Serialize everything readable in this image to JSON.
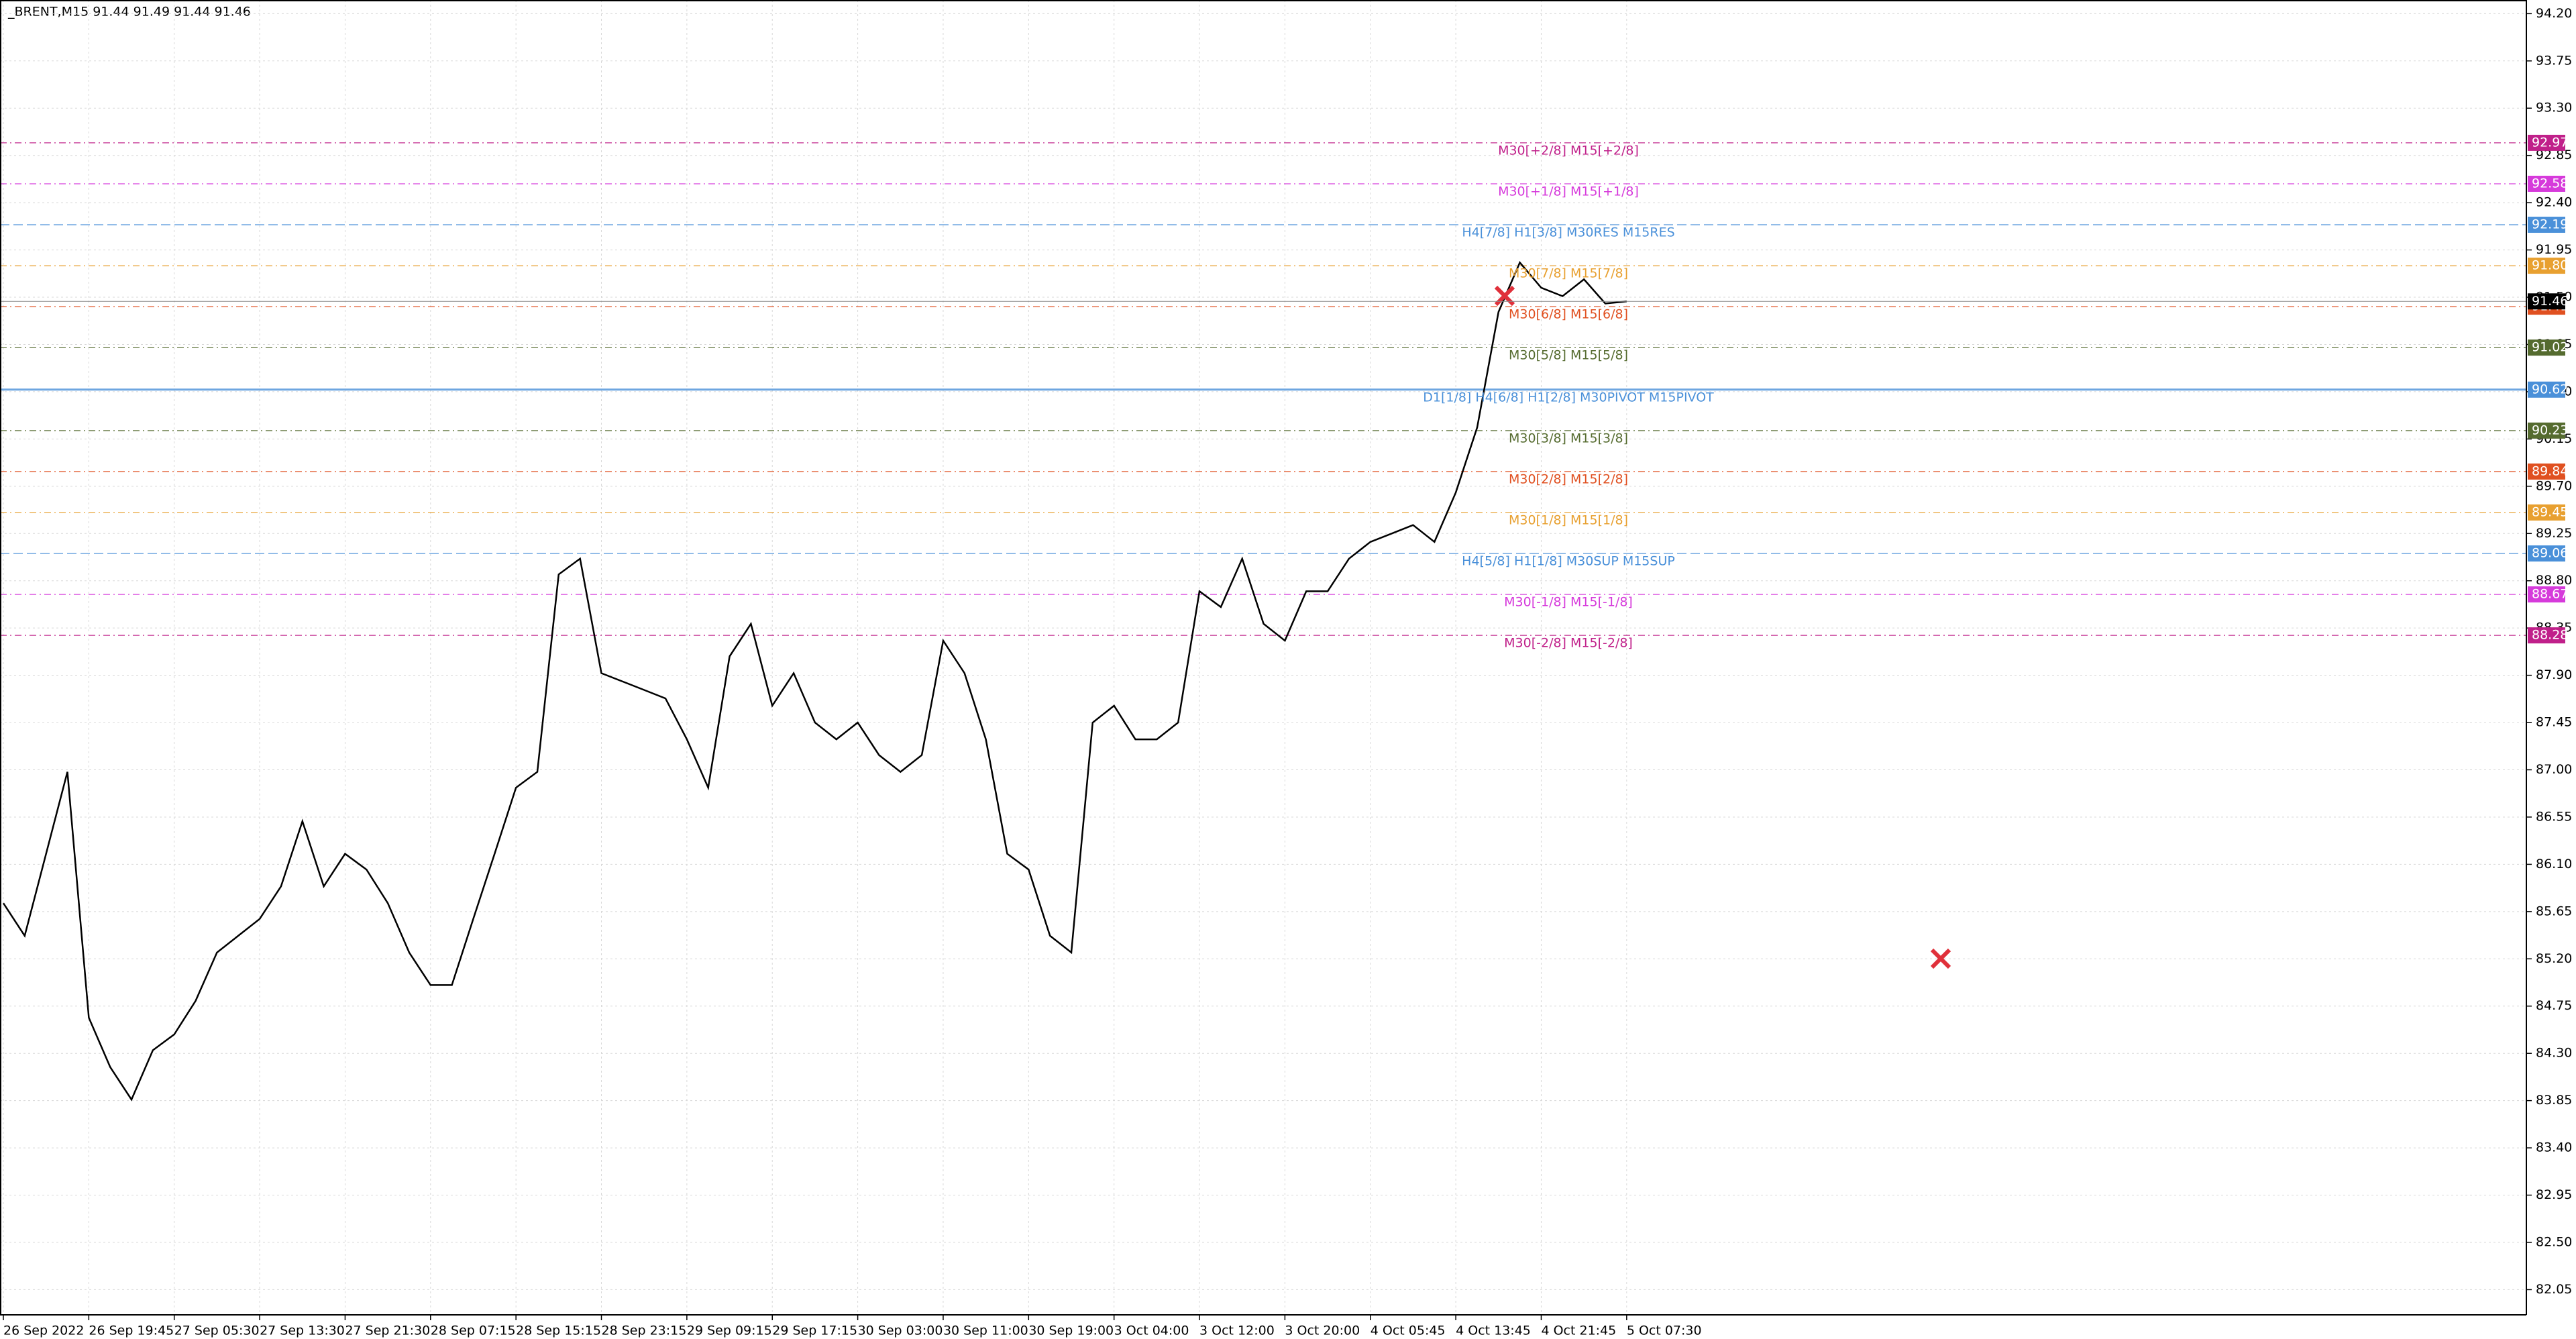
{
  "chart_data": {
    "type": "line",
    "title": "_BRENT,M15  91.44 91.49 91.44 91.46",
    "categories": [
      "26 Sep 2022",
      null,
      null,
      null,
      "26 Sep 19:45",
      null,
      null,
      null,
      "27 Sep 05:30",
      null,
      null,
      null,
      "27 Sep 13:30",
      null,
      null,
      null,
      "27 Sep 21:30",
      null,
      null,
      null,
      "28 Sep 07:15",
      null,
      null,
      null,
      "28 Sep 15:15",
      null,
      null,
      null,
      "28 Sep 23:15",
      null,
      null,
      null,
      "29 Sep 09:15",
      null,
      null,
      null,
      "29 Sep 17:15",
      null,
      null,
      null,
      "30 Sep 03:00",
      null,
      null,
      null,
      "30 Sep 11:00",
      null,
      null,
      null,
      "30 Sep 19:00",
      null,
      null,
      null,
      "3 Oct 04:00",
      null,
      null,
      null,
      "3 Oct 12:00",
      null,
      null,
      null,
      "3 Oct 20:00",
      null,
      null,
      null,
      "4 Oct 05:45",
      null,
      null,
      null,
      "4 Oct 13:45",
      null,
      null,
      null,
      "4 Oct 21:45",
      null,
      null,
      null,
      "5 Oct 07:30"
    ],
    "series": [
      {
        "name": "_BRENT,M15",
        "color": "#000000",
        "values": [
          85.73,
          85.42,
          86.2,
          86.98,
          84.64,
          84.17,
          83.86,
          84.33,
          84.48,
          84.8,
          85.26,
          85.42,
          85.58,
          85.89,
          86.51,
          85.89,
          86.2,
          86.05,
          85.73,
          85.26,
          84.95,
          84.95,
          85.58,
          86.2,
          86.83,
          86.98,
          88.86,
          89.01,
          87.92,
          87.84,
          87.76,
          87.68,
          87.29,
          86.83,
          88.08,
          88.39,
          87.61,
          87.92,
          87.45,
          87.29,
          87.45,
          87.14,
          86.98,
          87.14,
          88.23,
          87.92,
          87.29,
          86.2,
          86.05,
          85.42,
          85.26,
          87.45,
          87.61,
          87.29,
          87.29,
          87.45,
          88.7,
          88.55,
          89.01,
          88.39,
          88.23,
          88.7,
          88.7,
          89.01,
          89.17,
          89.25,
          89.33,
          89.17,
          89.64,
          90.26,
          91.36,
          91.83,
          91.59,
          91.51,
          91.67,
          91.44,
          91.46
        ]
      }
    ],
    "ylim": [
      81.81,
      94.33
    ],
    "yticks": [
      {
        "value": 94.2,
        "label": "94.20"
      },
      {
        "value": 93.75,
        "label": "93.75"
      },
      {
        "value": 93.3,
        "label": "93.30"
      },
      {
        "value": 92.85,
        "label": "92.85"
      },
      {
        "value": 92.4,
        "label": "92.40"
      },
      {
        "value": 91.95,
        "label": "91.95"
      },
      {
        "value": 91.5,
        "label": "91.50"
      },
      {
        "value": 91.05,
        "label": "91.05"
      },
      {
        "value": 90.6,
        "label": "90.60"
      },
      {
        "value": 90.15,
        "label": "90.15"
      },
      {
        "value": 89.7,
        "label": "89.70"
      },
      {
        "value": 89.25,
        "label": "89.25"
      },
      {
        "value": 88.8,
        "label": "88.80"
      },
      {
        "value": 88.35,
        "label": "88.35"
      },
      {
        "value": 87.9,
        "label": "87.90"
      },
      {
        "value": 87.45,
        "label": "87.45"
      },
      {
        "value": 87.0,
        "label": "87.00"
      },
      {
        "value": 86.55,
        "label": "86.55"
      },
      {
        "value": 86.1,
        "label": "86.10"
      },
      {
        "value": 85.65,
        "label": "85.65"
      },
      {
        "value": 85.2,
        "label": "85.20"
      },
      {
        "value": 84.75,
        "label": "84.75"
      },
      {
        "value": 84.3,
        "label": "84.30"
      },
      {
        "value": 83.85,
        "label": "83.85"
      },
      {
        "value": 83.4,
        "label": "83.40"
      },
      {
        "value": 82.95,
        "label": "82.95"
      },
      {
        "value": 82.5,
        "label": "82.50"
      },
      {
        "value": 82.05,
        "label": "82.05"
      }
    ],
    "grid": true,
    "last_price": 91.46,
    "levels": [
      {
        "name": "M30[+2/8] M15[+2/8]",
        "value": 92.97,
        "color": "#c0208a"
      },
      {
        "name": "M30[+1/8] M15[+1/8]",
        "value": 92.58,
        "color": "#d63adb"
      },
      {
        "name": "H4[7/8] H1[3/8] M30RES M15RES",
        "value": 92.19,
        "color": "#4a90d9"
      },
      {
        "name": "M30[7/8] M15[7/8]",
        "value": {
          "value": 91.8,
          "label": "91.80"
        },
        "color": "#e8a030"
      },
      {
        "name": "M30[6/8] M15[6/8]",
        "value": 91.41,
        "color": "#e05020"
      },
      {
        "name": "M30[5/8] M15[5/8]",
        "value": 91.02,
        "color": "#556b2f"
      },
      {
        "name": "D1[1/8] H4[6/8] H1[2/8] M30PIVOT M15PIVOT",
        "value": 90.62,
        "color": "#4a90d9"
      },
      {
        "name": "M30[3/8] M15[3/8]",
        "value": 90.23,
        "color": "#556b2f"
      },
      {
        "name": "M30[2/8] M15[2/8]",
        "value": 89.84,
        "color": "#e05020"
      },
      {
        "name": "M30[1/8] M15[1/8]",
        "value": 89.45,
        "color": "#e8a030"
      },
      {
        "name": "H4[5/8] H1[1/8] M30SUP M15SUP",
        "value": 89.06,
        "color": "#4a90d9"
      },
      {
        "name": "M30[-1/8] M15[-1/8]",
        "value": 88.67,
        "color": "#d63adb"
      },
      {
        "name": "M30[-2/8] M15[-2/8]",
        "value": 88.28,
        "color": "#c0208a"
      }
    ]
  }
}
